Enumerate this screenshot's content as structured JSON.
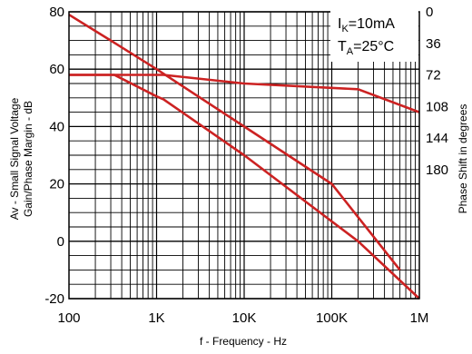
{
  "chart_data": {
    "type": "line",
    "x_scale": "log",
    "xlim": [
      100,
      1000000
    ],
    "ylim": [
      -20,
      80
    ],
    "xlabel": "f - Frequency - Hz",
    "ylabel_lines": [
      "Av - Small Signal Voltage",
      "Gain/Phase Margin - dB"
    ],
    "y2label": "Phase Shift in degrees",
    "x_tick_values": [
      100,
      1000,
      10000,
      100000,
      1000000
    ],
    "x_tick_labels": [
      "100",
      "1K",
      "10K",
      "100K",
      "1M"
    ],
    "y_tick_values": [
      -20,
      0,
      20,
      40,
      60,
      80
    ],
    "y_tick_labels": [
      "-20",
      "0",
      "20",
      "40",
      "60",
      "80"
    ],
    "y2_ticks": [
      {
        "label": "0",
        "at": 80
      },
      {
        "label": "36",
        "at": 69
      },
      {
        "label": "72",
        "at": 58
      },
      {
        "label": "108",
        "at": 47
      },
      {
        "label": "144",
        "at": 36
      },
      {
        "label": "180",
        "at": 25
      }
    ],
    "grid": true,
    "line_color": "#cc2222",
    "series": [
      {
        "x": [
          100,
          300,
          1000,
          10000,
          100000,
          600000
        ],
        "y": [
          79,
          70,
          60,
          40,
          20,
          -10
        ]
      },
      {
        "x": [
          100,
          330,
          1000,
          1200,
          10000,
          200000,
          1000000
        ],
        "y": [
          58,
          58,
          50.5,
          49.5,
          30,
          0,
          -20
        ]
      },
      {
        "x": [
          100,
          330,
          1200,
          10000,
          200000,
          1000000
        ],
        "y": [
          58,
          58,
          58,
          55,
          53,
          45
        ]
      }
    ],
    "annotation": {
      "line1": {
        "base": "I",
        "sub": "K",
        "rest": "=10mA"
      },
      "line2": {
        "base": "T",
        "sub": "A",
        "rest": "=25°C"
      }
    }
  }
}
